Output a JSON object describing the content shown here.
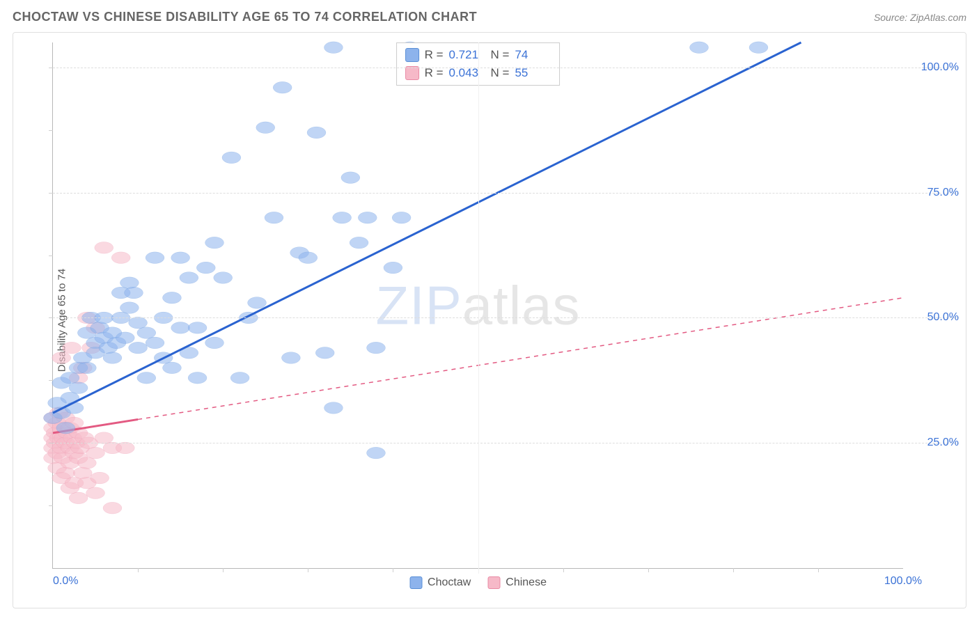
{
  "title": "CHOCTAW VS CHINESE DISABILITY AGE 65 TO 74 CORRELATION CHART",
  "source_label": "Source: ",
  "source_name": "ZipAtlas.com",
  "ylabel": "Disability Age 65 to 74",
  "watermark_bold": "ZIP",
  "watermark_thin": "atlas",
  "chart": {
    "type": "scatter-correlation",
    "background_color": "#ffffff",
    "grid_color": "#dddddd",
    "axis_color": "#b7b7b7",
    "tick_label_color": "#3b72d6",
    "xlim": [
      0,
      100
    ],
    "ylim": [
      0,
      105
    ],
    "xticks_visible": [
      0,
      100
    ],
    "xtick_labels": [
      "0.0%",
      "100.0%"
    ],
    "minor_xtick_positions": [
      10,
      20,
      30,
      40,
      50,
      60,
      70,
      80,
      90
    ],
    "yticks": [
      25,
      50,
      75,
      100
    ],
    "ytick_labels": [
      "25.0%",
      "50.0%",
      "75.0%",
      "100.0%"
    ],
    "minor_ytick_positions": [
      12.5,
      37.5,
      62.5,
      87.5
    ],
    "marker_radius": 8,
    "marker_opacity": 0.55,
    "line_width": 3,
    "series": {
      "choctaw": {
        "label": "Choctaw",
        "color_fill": "#8db3ec",
        "color_stroke": "#5a8fd6",
        "line_color": "#2a63d0",
        "R_label": "R  =",
        "R_value": "0.721",
        "N_label": "N  =",
        "N_value": "74",
        "trend": {
          "x1": 0,
          "y1": 31,
          "x2": 88,
          "y2": 105,
          "dash": false,
          "solid_until_pct": 100
        },
        "points": [
          [
            0,
            30
          ],
          [
            0.5,
            33
          ],
          [
            1,
            37
          ],
          [
            1,
            31
          ],
          [
            1.5,
            28
          ],
          [
            2,
            38
          ],
          [
            2,
            34
          ],
          [
            2.5,
            32
          ],
          [
            3,
            40
          ],
          [
            3,
            36
          ],
          [
            3.5,
            42
          ],
          [
            4,
            47
          ],
          [
            4,
            40
          ],
          [
            4.5,
            50
          ],
          [
            5,
            45
          ],
          [
            5,
            43
          ],
          [
            5.5,
            48
          ],
          [
            6,
            50
          ],
          [
            6,
            46
          ],
          [
            6.5,
            44
          ],
          [
            7,
            42
          ],
          [
            7,
            47
          ],
          [
            7.5,
            45
          ],
          [
            8,
            55
          ],
          [
            8,
            50
          ],
          [
            8.5,
            46
          ],
          [
            9,
            57
          ],
          [
            9,
            52
          ],
          [
            9.5,
            55
          ],
          [
            10,
            49
          ],
          [
            10,
            44
          ],
          [
            11,
            47
          ],
          [
            11,
            38
          ],
          [
            12,
            62
          ],
          [
            12,
            45
          ],
          [
            13,
            42
          ],
          [
            13,
            50
          ],
          [
            14,
            40
          ],
          [
            14,
            54
          ],
          [
            15,
            62
          ],
          [
            15,
            48
          ],
          [
            16,
            43
          ],
          [
            16,
            58
          ],
          [
            17,
            38
          ],
          [
            17,
            48
          ],
          [
            18,
            60
          ],
          [
            19,
            45
          ],
          [
            19,
            65
          ],
          [
            20,
            58
          ],
          [
            21,
            82
          ],
          [
            22,
            38
          ],
          [
            23,
            50
          ],
          [
            24,
            53
          ],
          [
            25,
            88
          ],
          [
            26,
            70
          ],
          [
            27,
            96
          ],
          [
            28,
            42
          ],
          [
            29,
            63
          ],
          [
            30,
            62
          ],
          [
            31,
            87
          ],
          [
            32,
            43
          ],
          [
            33,
            104
          ],
          [
            33,
            32
          ],
          [
            34,
            70
          ],
          [
            35,
            78
          ],
          [
            36,
            65
          ],
          [
            37,
            70
          ],
          [
            38,
            23
          ],
          [
            38,
            44
          ],
          [
            40,
            60
          ],
          [
            41,
            70
          ],
          [
            42,
            104
          ],
          [
            76,
            104
          ],
          [
            83,
            104
          ]
        ]
      },
      "chinese": {
        "label": "Chinese",
        "color_fill": "#f6b9c8",
        "color_stroke": "#e98aa4",
        "line_color": "#e35a82",
        "R_label": "R  =",
        "R_value": "0.043",
        "N_label": "N  =",
        "N_value": "55",
        "trend": {
          "x1": 0,
          "y1": 27,
          "x2": 100,
          "y2": 54,
          "dash": true,
          "solid_until_pct": 10
        },
        "points": [
          [
            0,
            26
          ],
          [
            0,
            28
          ],
          [
            0,
            24
          ],
          [
            0,
            22
          ],
          [
            0,
            30
          ],
          [
            0.3,
            25
          ],
          [
            0.3,
            27
          ],
          [
            0.5,
            23
          ],
          [
            0.5,
            29
          ],
          [
            0.5,
            20
          ],
          [
            0.7,
            26
          ],
          [
            0.7,
            31
          ],
          [
            1,
            24
          ],
          [
            1,
            28
          ],
          [
            1,
            18
          ],
          [
            1,
            42
          ],
          [
            1.2,
            26
          ],
          [
            1.2,
            22
          ],
          [
            1.5,
            25
          ],
          [
            1.5,
            30
          ],
          [
            1.5,
            19
          ],
          [
            1.7,
            27
          ],
          [
            2,
            24
          ],
          [
            2,
            21
          ],
          [
            2,
            28
          ],
          [
            2,
            16
          ],
          [
            2.2,
            44
          ],
          [
            2.3,
            26
          ],
          [
            2.5,
            23
          ],
          [
            2.5,
            29
          ],
          [
            2.5,
            17
          ],
          [
            2.7,
            25
          ],
          [
            3,
            22
          ],
          [
            3,
            27
          ],
          [
            3,
            14
          ],
          [
            3,
            38
          ],
          [
            3.2,
            24
          ],
          [
            3.5,
            40
          ],
          [
            3.5,
            19
          ],
          [
            3.7,
            26
          ],
          [
            4,
            21
          ],
          [
            4,
            17
          ],
          [
            4,
            50
          ],
          [
            4.2,
            25
          ],
          [
            4.5,
            44
          ],
          [
            5,
            23
          ],
          [
            5,
            15
          ],
          [
            5,
            48
          ],
          [
            5.5,
            18
          ],
          [
            6,
            64
          ],
          [
            6,
            26
          ],
          [
            7,
            24
          ],
          [
            7,
            12
          ],
          [
            8,
            62
          ],
          [
            8.5,
            24
          ]
        ]
      }
    },
    "legend_swatch_choctaw": "#8db3ec",
    "legend_swatch_chinese": "#f6b9c8",
    "legend_swatch_border_choctaw": "#5a8fd6",
    "legend_swatch_border_chinese": "#e98aa4"
  }
}
